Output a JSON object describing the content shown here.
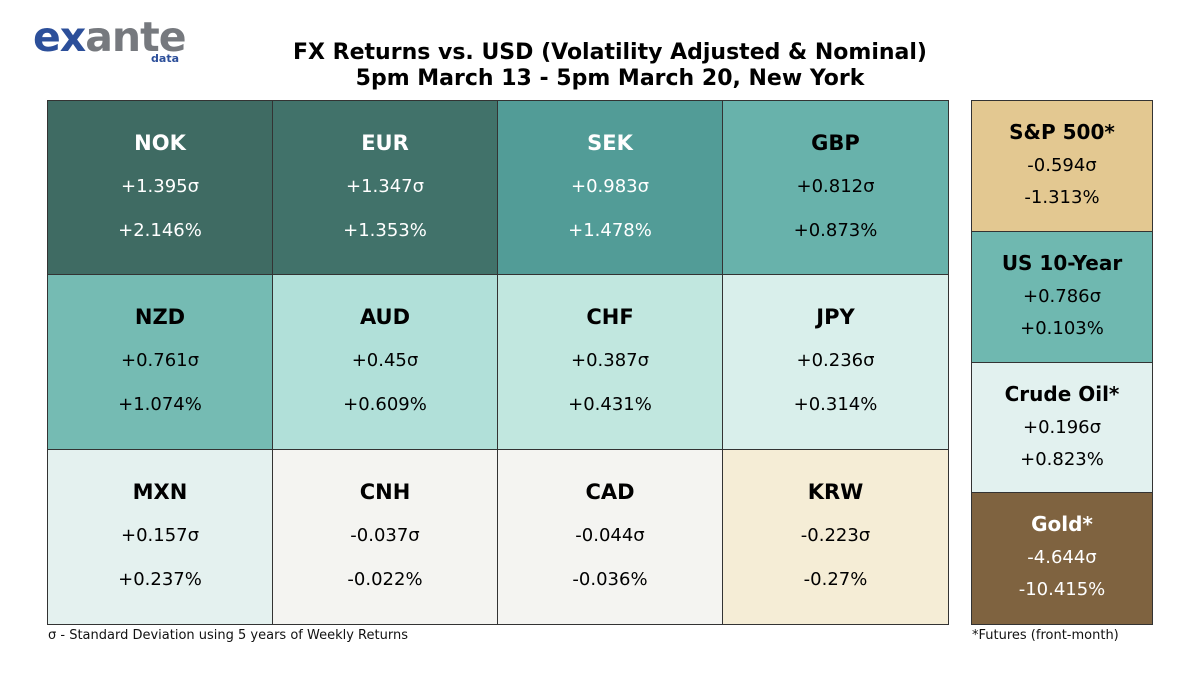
{
  "logo": {
    "main_blue": "ex",
    "main_grey": "ante",
    "sub": "data"
  },
  "title_line1": "FX Returns vs. USD (Volatility Adjusted & Nominal)",
  "title_line2": "5pm March 13 - 5pm March 20, New York",
  "chart_data": {
    "type": "table",
    "title": "FX Returns vs. USD (Volatility Adjusted & Nominal)",
    "subtitle": "5pm March 13 - 5pm March 20, New York",
    "fx": [
      {
        "name": "NOK",
        "sigma": "+1.395σ",
        "pct": "+2.146%",
        "sigma_value": 1.395,
        "pct_value": 2.146,
        "bg": "#3f6b63",
        "fg": "#ffffff"
      },
      {
        "name": "EUR",
        "sigma": "+1.347σ",
        "pct": "+1.353%",
        "sigma_value": 1.347,
        "pct_value": 1.353,
        "bg": "#41726a",
        "fg": "#ffffff"
      },
      {
        "name": "SEK",
        "sigma": "+0.983σ",
        "pct": "+1.478%",
        "sigma_value": 0.983,
        "pct_value": 1.478,
        "bg": "#529c97",
        "fg": "#ffffff"
      },
      {
        "name": "GBP",
        "sigma": "+0.812σ",
        "pct": "+0.873%",
        "sigma_value": 0.812,
        "pct_value": 0.873,
        "bg": "#68b2ab",
        "fg": "#000000"
      },
      {
        "name": "NZD",
        "sigma": "+0.761σ",
        "pct": "+1.074%",
        "sigma_value": 0.761,
        "pct_value": 1.074,
        "bg": "#75bbb3",
        "fg": "#000000"
      },
      {
        "name": "AUD",
        "sigma": "+0.45σ",
        "pct": "+0.609%",
        "sigma_value": 0.45,
        "pct_value": 0.609,
        "bg": "#b1e0d9",
        "fg": "#000000"
      },
      {
        "name": "CHF",
        "sigma": "+0.387σ",
        "pct": "+0.431%",
        "sigma_value": 0.387,
        "pct_value": 0.431,
        "bg": "#c1e7df",
        "fg": "#000000"
      },
      {
        "name": "JPY",
        "sigma": "+0.236σ",
        "pct": "+0.314%",
        "sigma_value": 0.236,
        "pct_value": 0.314,
        "bg": "#d9efeb",
        "fg": "#000000"
      },
      {
        "name": "MXN",
        "sigma": "+0.157σ",
        "pct": "+0.237%",
        "sigma_value": 0.157,
        "pct_value": 0.237,
        "bg": "#e4f1ef",
        "fg": "#000000"
      },
      {
        "name": "CNH",
        "sigma": "-0.037σ",
        "pct": "-0.022%",
        "sigma_value": -0.037,
        "pct_value": -0.022,
        "bg": "#f4f4f1",
        "fg": "#000000"
      },
      {
        "name": "CAD",
        "sigma": "-0.044σ",
        "pct": "-0.036%",
        "sigma_value": -0.044,
        "pct_value": -0.036,
        "bg": "#f4f4f1",
        "fg": "#000000"
      },
      {
        "name": "KRW",
        "sigma": "-0.223σ",
        "pct": "-0.27%",
        "sigma_value": -0.223,
        "pct_value": -0.27,
        "bg": "#f5edd6",
        "fg": "#000000"
      }
    ],
    "other_assets": [
      {
        "name": "S&P 500*",
        "sigma": "-0.594σ",
        "pct": "-1.313%",
        "sigma_value": -0.594,
        "pct_value": -1.313,
        "bg": "#e3c891",
        "fg": "#000000"
      },
      {
        "name": "US 10-Year",
        "sigma": "+0.786σ",
        "pct": "+0.103%",
        "sigma_value": 0.786,
        "pct_value": 0.103,
        "bg": "#6fb8b0",
        "fg": "#000000"
      },
      {
        "name": "Crude Oil*",
        "sigma": "+0.196σ",
        "pct": "+0.823%",
        "sigma_value": 0.196,
        "pct_value": 0.823,
        "bg": "#e2f1ef",
        "fg": "#000000"
      },
      {
        "name": "Gold*",
        "sigma": "-4.644σ",
        "pct": "-10.415%",
        "sigma_value": -4.644,
        "pct_value": -10.415,
        "bg": "#7f6340",
        "fg": "#ffffff"
      }
    ]
  },
  "footnote_left": "σ - Standard Deviation using 5 years of Weekly Returns",
  "footnote_right": "*Futures (front-month)"
}
